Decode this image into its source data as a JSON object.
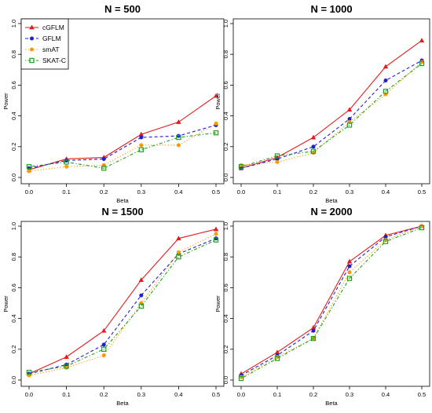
{
  "chart_data": [
    {
      "type": "line",
      "title": "N = 500",
      "xlabel": "Beta",
      "ylabel": "Power",
      "x": [
        0.0,
        0.1,
        0.2,
        0.3,
        0.4,
        0.5
      ],
      "x_tick_labels": [
        "0.0",
        "0.1",
        "0.2",
        "0.3",
        "0.4",
        "0.5"
      ],
      "y_tick_labels": [
        "0.0",
        "0.2",
        "0.4",
        "0.6",
        "0.8",
        "1.0"
      ],
      "xlim": [
        0.0,
        0.5
      ],
      "ylim": [
        0.0,
        1.0
      ],
      "legend": "top-left",
      "grid": false,
      "series": [
        {
          "name": "cGFLM",
          "color": "#e41a1c",
          "marker": "triangle",
          "line": "solid",
          "values": [
            0.05,
            0.12,
            0.13,
            0.28,
            0.36,
            0.53
          ]
        },
        {
          "name": "GFLM",
          "color": "#1f1fd6",
          "marker": "circle",
          "line": "dashed",
          "values": [
            0.06,
            0.11,
            0.12,
            0.26,
            0.27,
            0.34
          ]
        },
        {
          "name": "smAT",
          "color": "#ff9900",
          "marker": "circle",
          "line": "dotted",
          "values": [
            0.04,
            0.07,
            0.08,
            0.21,
            0.21,
            0.35
          ]
        },
        {
          "name": "SKAT-C",
          "color": "#22a022",
          "marker": "square",
          "line": "dotdash",
          "values": [
            0.07,
            0.1,
            0.06,
            0.18,
            0.26,
            0.29
          ]
        }
      ]
    },
    {
      "type": "line",
      "title": "N = 1000",
      "xlabel": "Beta",
      "ylabel": "Power",
      "x": [
        0.0,
        0.1,
        0.2,
        0.3,
        0.4,
        0.5
      ],
      "x_tick_labels": [
        "0.0",
        "0.1",
        "0.2",
        "0.3",
        "0.4",
        "0.5"
      ],
      "y_tick_labels": [
        "0.0",
        "0.2",
        "0.4",
        "0.6",
        "0.8",
        "1.0"
      ],
      "xlim": [
        0.0,
        0.5
      ],
      "ylim": [
        0.0,
        1.0
      ],
      "grid": false,
      "series": [
        {
          "name": "cGFLM",
          "color": "#e41a1c",
          "marker": "triangle",
          "line": "solid",
          "values": [
            0.06,
            0.13,
            0.26,
            0.44,
            0.72,
            0.89
          ]
        },
        {
          "name": "GFLM",
          "color": "#1f1fd6",
          "marker": "circle",
          "line": "dashed",
          "values": [
            0.06,
            0.12,
            0.2,
            0.38,
            0.63,
            0.76
          ]
        },
        {
          "name": "smAT",
          "color": "#ff9900",
          "marker": "circle",
          "line": "dotted",
          "values": [
            0.08,
            0.1,
            0.16,
            0.36,
            0.54,
            0.75
          ]
        },
        {
          "name": "SKAT-C",
          "color": "#22a022",
          "marker": "square",
          "line": "dotdash",
          "values": [
            0.07,
            0.14,
            0.17,
            0.34,
            0.56,
            0.74
          ]
        }
      ]
    },
    {
      "type": "line",
      "title": "N = 1500",
      "xlabel": "Beta",
      "ylabel": "Power",
      "x": [
        0.0,
        0.1,
        0.2,
        0.3,
        0.4,
        0.5
      ],
      "x_tick_labels": [
        "0.0",
        "0.1",
        "0.2",
        "0.3",
        "0.4",
        "0.5"
      ],
      "y_tick_labels": [
        "0.0",
        "0.2",
        "0.4",
        "0.6",
        "0.8",
        "1.0"
      ],
      "xlim": [
        0.0,
        0.5
      ],
      "ylim": [
        0.0,
        1.0
      ],
      "grid": false,
      "series": [
        {
          "name": "cGFLM",
          "color": "#e41a1c",
          "marker": "triangle",
          "line": "solid",
          "values": [
            0.04,
            0.15,
            0.32,
            0.65,
            0.92,
            0.98
          ]
        },
        {
          "name": "GFLM",
          "color": "#1f1fd6",
          "marker": "circle",
          "line": "dashed",
          "values": [
            0.04,
            0.1,
            0.23,
            0.55,
            0.82,
            0.92
          ]
        },
        {
          "name": "smAT",
          "color": "#ff9900",
          "marker": "circle",
          "line": "dotted",
          "values": [
            0.03,
            0.08,
            0.16,
            0.5,
            0.83,
            0.95
          ]
        },
        {
          "name": "SKAT-C",
          "color": "#22a022",
          "marker": "square",
          "line": "dotdash",
          "values": [
            0.05,
            0.09,
            0.2,
            0.48,
            0.8,
            0.91
          ]
        }
      ]
    },
    {
      "type": "line",
      "title": "N = 2000",
      "xlabel": "Beta",
      "ylabel": "Power",
      "x": [
        0.0,
        0.1,
        0.2,
        0.3,
        0.4,
        0.5
      ],
      "x_tick_labels": [
        "0.0",
        "0.1",
        "0.2",
        "0.3",
        "0.4",
        "0.5"
      ],
      "y_tick_labels": [
        "0.0",
        "0.2",
        "0.4",
        "0.6",
        "0.8",
        "1.0"
      ],
      "xlim": [
        0.0,
        0.5
      ],
      "ylim": [
        0.0,
        1.0
      ],
      "grid": false,
      "series": [
        {
          "name": "cGFLM",
          "color": "#e41a1c",
          "marker": "triangle",
          "line": "solid",
          "values": [
            0.04,
            0.18,
            0.34,
            0.77,
            0.94,
            1.0
          ]
        },
        {
          "name": "GFLM",
          "color": "#1f1fd6",
          "marker": "circle",
          "line": "dashed",
          "values": [
            0.03,
            0.16,
            0.32,
            0.74,
            0.93,
            1.0
          ]
        },
        {
          "name": "smAT",
          "color": "#ff9900",
          "marker": "circle",
          "line": "dotted",
          "values": [
            0.02,
            0.15,
            0.27,
            0.7,
            0.91,
            1.0
          ]
        },
        {
          "name": "SKAT-C",
          "color": "#22a022",
          "marker": "square",
          "line": "dotdash",
          "values": [
            0.01,
            0.14,
            0.27,
            0.66,
            0.9,
            0.99
          ]
        }
      ]
    }
  ]
}
